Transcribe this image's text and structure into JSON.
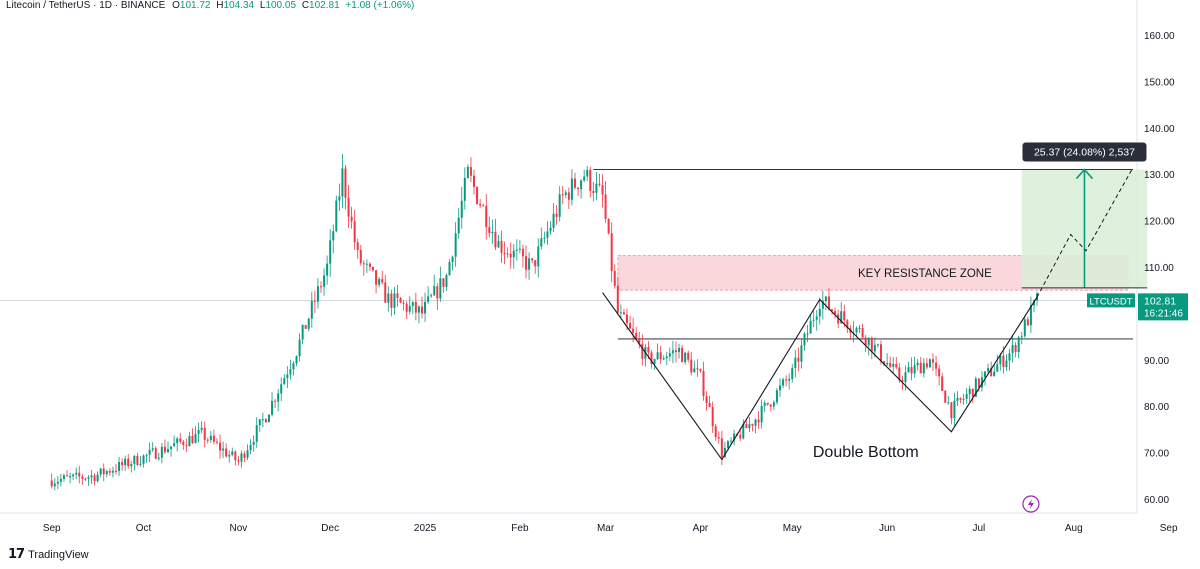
{
  "header": {
    "symbol": "Litecoin / TetherUS · 1D · BINANCE",
    "o_label": "O",
    "o_value": "101.72",
    "h_label": "H",
    "h_value": "104.34",
    "l_label": "L",
    "l_value": "100.05",
    "c_label": "C",
    "c_value": "102.81",
    "change": "+1.08 (+1.06%)"
  },
  "footer": {
    "logo_icon": "tradingview-logo-icon",
    "brand": "TradingView"
  },
  "chart_data": {
    "type": "candlestick",
    "y_axis": {
      "ticks": [
        "160.00",
        "150.00",
        "140.00",
        "130.00",
        "120.00",
        "110.00",
        "100.00",
        "90.00",
        "80.00",
        "70.00",
        "60.00"
      ],
      "range": [
        58,
        160
      ]
    },
    "x_axis": {
      "ticks": [
        "Sep",
        "Oct",
        "Nov",
        "Dec",
        "2025",
        "Feb",
        "Mar",
        "Apr",
        "May",
        "Jun",
        "Jul",
        "Aug",
        "Sep"
      ]
    },
    "price_path": [
      [
        "2024-09-01",
        64
      ],
      [
        "2024-09-15",
        65
      ],
      [
        "2024-10-01",
        69
      ],
      [
        "2024-10-20",
        74
      ],
      [
        "2024-11-01",
        68
      ],
      [
        "2024-11-10",
        78
      ],
      [
        "2024-11-20",
        92
      ],
      [
        "2024-11-30",
        110
      ],
      [
        "2024-12-05",
        130
      ],
      [
        "2024-12-10",
        112
      ],
      [
        "2024-12-20",
        103
      ],
      [
        "2024-12-31",
        100
      ],
      [
        "2025-01-08",
        108
      ],
      [
        "2025-01-15",
        130
      ],
      [
        "2025-01-25",
        115
      ],
      [
        "2025-02-05",
        110
      ],
      [
        "2025-02-15",
        125
      ],
      [
        "2025-02-22",
        130
      ],
      [
        "2025-02-28",
        125
      ],
      [
        "2025-03-05",
        100
      ],
      [
        "2025-03-15",
        90
      ],
      [
        "2025-03-25",
        92
      ],
      [
        "2025-04-01",
        86
      ],
      [
        "2025-04-08",
        70
      ],
      [
        "2025-04-20",
        78
      ],
      [
        "2025-05-01",
        87
      ],
      [
        "2025-05-10",
        103
      ],
      [
        "2025-05-25",
        95
      ],
      [
        "2025-06-05",
        86
      ],
      [
        "2025-06-15",
        90
      ],
      [
        "2025-06-22",
        79
      ],
      [
        "2025-07-01",
        85
      ],
      [
        "2025-07-12",
        92
      ],
      [
        "2025-07-20",
        102.81
      ]
    ],
    "annotations": {
      "resistance_line": 131,
      "neckline": 94.5,
      "zone": {
        "label": "KEY RESISTANCE ZONE",
        "from": 105,
        "to": 112.5
      },
      "pattern_label": "Double Bottom",
      "measure": {
        "label": "25.37 (24.08%) 2,537",
        "from": 105.5,
        "to": 131
      },
      "symbol_tag": "LTCUSDT",
      "last_price": "102.81",
      "countdown": "16:21:46"
    },
    "colors": {
      "up": "#089981",
      "down": "#f23645",
      "zone": "#f8c9cf",
      "measure": "#d8efd6",
      "measure_line": "#089981",
      "text": "#131722"
    }
  }
}
